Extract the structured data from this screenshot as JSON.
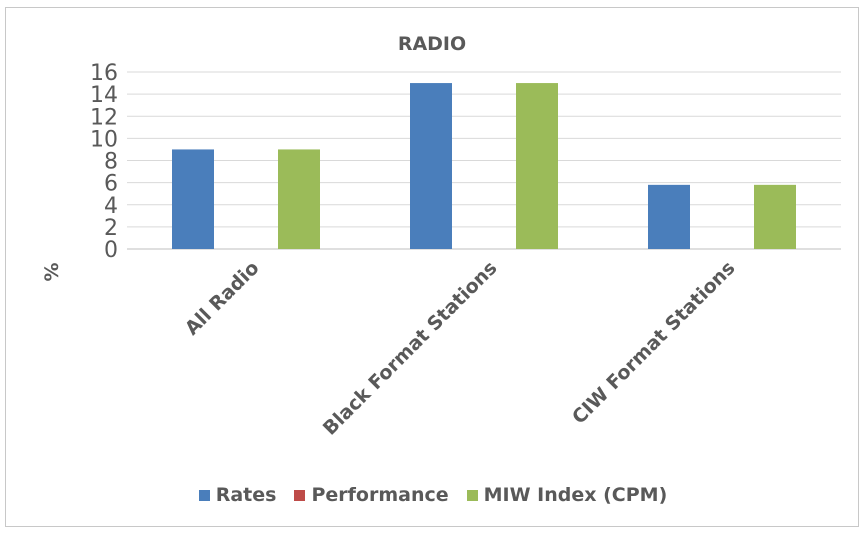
{
  "chart_data": {
    "type": "bar",
    "title": "RADIO",
    "ylabel": "%",
    "xlabel": "",
    "categories": [
      "All Radio",
      "Black Format Stations",
      "CIW Format Stations"
    ],
    "series": [
      {
        "name": "Rates",
        "values": [
          9,
          15,
          5.8
        ],
        "color": "#4a7ebb"
      },
      {
        "name": "Performance",
        "values": [
          null,
          null,
          null
        ],
        "color": "#be4b48"
      },
      {
        "name": "MIW Index (CPM)",
        "values": [
          9,
          15,
          5.8
        ],
        "color": "#9bbb59"
      }
    ],
    "ylim": [
      0,
      16
    ],
    "yticks": [
      0,
      2,
      4,
      6,
      8,
      10,
      12,
      14,
      16
    ],
    "grid": true,
    "legend_position": "bottom"
  }
}
